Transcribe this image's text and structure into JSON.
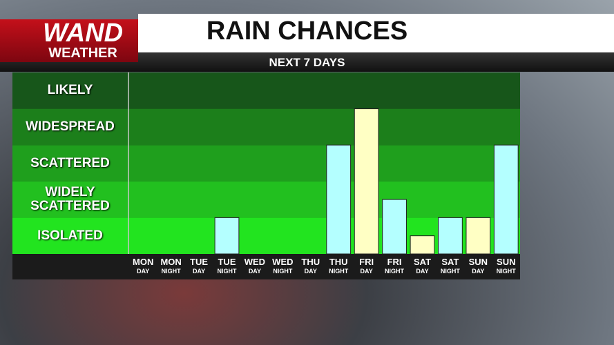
{
  "logo": [
    "WAND",
    "WEATHER"
  ],
  "chart_data": {
    "type": "bar",
    "title": "RAIN CHANCES",
    "subtitle": "NEXT 7 DAYS",
    "categories": [
      "MON",
      "MON",
      "TUE",
      "TUE",
      "WED",
      "WED",
      "THU",
      "THU",
      "FRI",
      "FRI",
      "SAT",
      "SAT",
      "SUN",
      "SUN"
    ],
    "periods": [
      "DAY",
      "NIGHT",
      "DAY",
      "NIGHT",
      "DAY",
      "NIGHT",
      "DAY",
      "NIGHT",
      "DAY",
      "NIGHT",
      "DAY",
      "NIGHT",
      "DAY",
      "NIGHT"
    ],
    "values": [
      0,
      0,
      0,
      1,
      0,
      0,
      0,
      3,
      4,
      1.5,
      0.5,
      1,
      1,
      3
    ],
    "bar_colors": [
      "#ffffc4",
      "#b4ffff",
      "#ffffc4",
      "#b4ffff",
      "#ffffc4",
      "#b4ffff",
      "#ffffc4",
      "#b4ffff",
      "#ffffc4",
      "#b4ffff",
      "#ffffc4",
      "#b4ffff",
      "#ffffc4",
      "#b4ffff"
    ],
    "ylim": [
      0,
      5
    ],
    "yticks": [
      {
        "value": 0.5,
        "label": "ISOLATED"
      },
      {
        "value": 1.5,
        "label": "WIDELY SCATTERED"
      },
      {
        "value": 2.5,
        "label": "SCATTERED"
      },
      {
        "value": 3.5,
        "label": "WIDESPREAD"
      },
      {
        "value": 4.5,
        "label": "LIKELY"
      }
    ],
    "band_colors": [
      "#22e41f",
      "#22c01f",
      "#1f9f1d",
      "#1c7f1b",
      "#17561a"
    ]
  }
}
